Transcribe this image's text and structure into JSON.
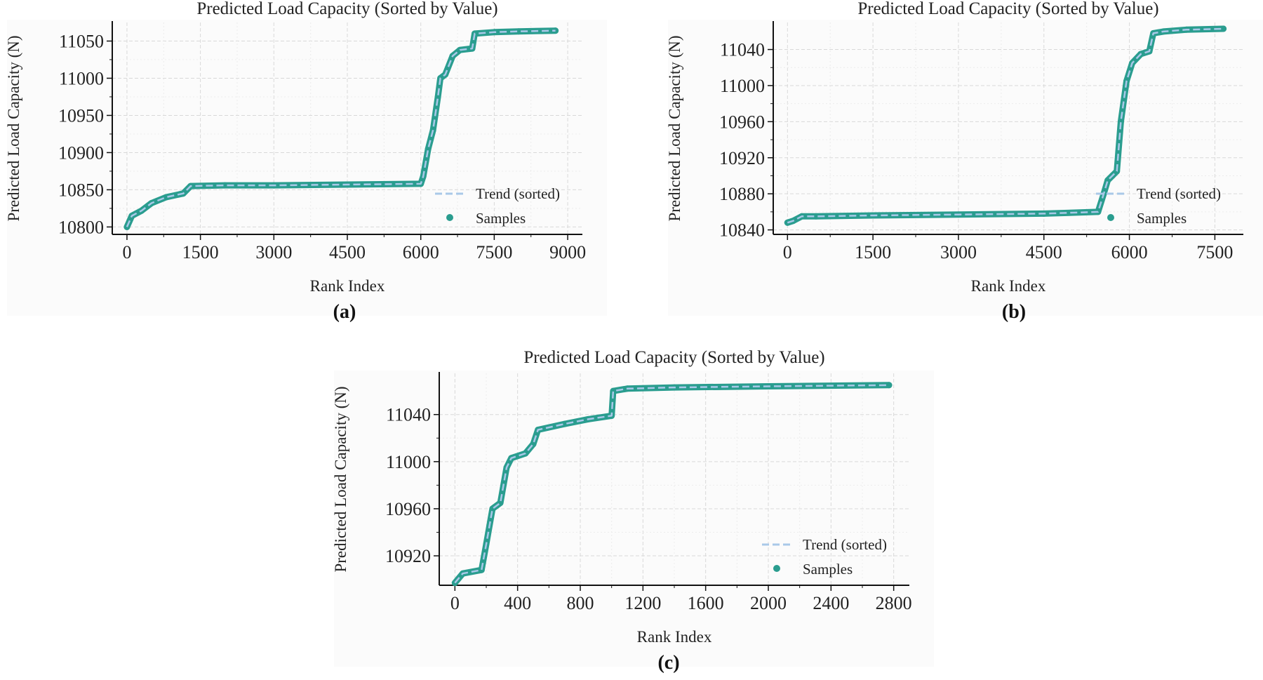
{
  "figure": {
    "style": {
      "accent": "#2a9d8f",
      "trend_color": "#a9c8e8",
      "grid_color": "#d9d9d9"
    }
  },
  "chart_data": [
    {
      "type": "line",
      "panel": "(a)",
      "title": "Predicted Load Capacity (Sorted by Value)",
      "xlabel": "Rank Index",
      "ylabel": "Predicted Load Capacity (N)",
      "xlim": [
        -300,
        9300
      ],
      "ylim": [
        10790,
        11075
      ],
      "xticks": [
        0,
        1500,
        3000,
        4500,
        6000,
        7500,
        9000
      ],
      "yticks": [
        10800,
        10850,
        10900,
        10950,
        11000,
        11050
      ],
      "legend": {
        "position": "lower-right",
        "entries": [
          "Trend (sorted)",
          "Samples"
        ]
      },
      "series": [
        {
          "name": "Samples",
          "x": [
            0,
            100,
            300,
            500,
            800,
            1150,
            1300,
            2000,
            3000,
            4500,
            6000,
            6050,
            6150,
            6250,
            6350,
            6400,
            6500,
            6650,
            6800,
            7050,
            7100,
            7500,
            8000,
            8750
          ],
          "values": [
            10800,
            10815,
            10822,
            10832,
            10840,
            10845,
            10855,
            10856,
            10856,
            10857,
            10858,
            10868,
            10905,
            10930,
            10975,
            11000,
            11005,
            11030,
            11038,
            11040,
            11060,
            11062,
            11063,
            11064
          ]
        }
      ]
    },
    {
      "type": "line",
      "panel": "(b)",
      "title": "Predicted Load Capacity (Sorted by Value)",
      "xlabel": "Rank Index",
      "ylabel": "Predicted Load Capacity (N)",
      "xlim": [
        -250,
        8000
      ],
      "ylim": [
        10835,
        11070
      ],
      "xticks": [
        0,
        1500,
        3000,
        4500,
        6000,
        7500
      ],
      "yticks": [
        10840,
        10880,
        10920,
        10960,
        11000,
        11040
      ],
      "legend": {
        "position": "lower-right",
        "entries": [
          "Trend (sorted)",
          "Samples"
        ]
      },
      "series": [
        {
          "name": "Samples",
          "x": [
            0,
            100,
            250,
            500,
            1500,
            3000,
            4500,
            5450,
            5550,
            5620,
            5700,
            5780,
            5850,
            5950,
            6050,
            6200,
            6350,
            6420,
            6600,
            7000,
            7650
          ],
          "values": [
            10848,
            10850,
            10855,
            10855,
            10856,
            10857,
            10858,
            10860,
            10880,
            10895,
            10900,
            10905,
            10960,
            11005,
            11025,
            11035,
            11038,
            11058,
            11060,
            11062,
            11063
          ]
        }
      ]
    },
    {
      "type": "line",
      "panel": "(c)",
      "title": "Predicted Load Capacity (Sorted by Value)",
      "xlabel": "Rank Index",
      "ylabel": "Predicted Load Capacity (N)",
      "xlim": [
        -100,
        2900
      ],
      "ylim": [
        10895,
        11075
      ],
      "xticks": [
        0,
        400,
        800,
        1200,
        1600,
        2000,
        2400,
        2800
      ],
      "yticks": [
        10920,
        10960,
        11000,
        11040
      ],
      "legend": {
        "position": "lower-right",
        "entries": [
          "Trend (sorted)",
          "Samples"
        ]
      },
      "series": [
        {
          "name": "Samples",
          "x": [
            0,
            50,
            170,
            200,
            240,
            290,
            330,
            360,
            450,
            500,
            530,
            700,
            850,
            1000,
            1010,
            1100,
            1400,
            2000,
            2770
          ],
          "values": [
            10897,
            10905,
            10908,
            10930,
            10960,
            10965,
            10995,
            11003,
            11007,
            11015,
            11027,
            11032,
            11036,
            11039,
            11060,
            11062,
            11063,
            11064,
            11065
          ]
        }
      ]
    }
  ]
}
